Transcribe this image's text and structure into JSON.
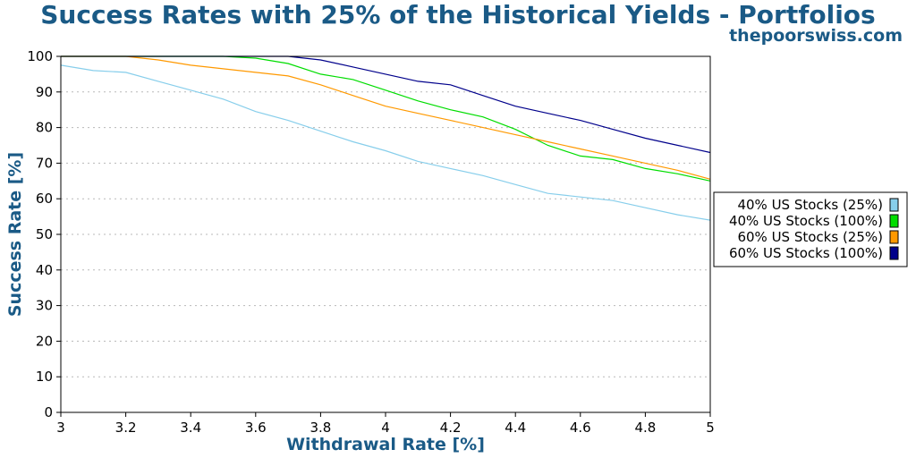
{
  "chart_data": {
    "type": "line",
    "title": "Success Rates with 25% of the Historical Yields - Portfolios",
    "subtitle": "thepoorswiss.com",
    "xlabel": "Withdrawal Rate [%]",
    "ylabel": "Success Rate [%]",
    "xlim": [
      3,
      5
    ],
    "ylim": [
      0,
      100
    ],
    "xticks": [
      "3",
      "3.2",
      "3.4",
      "3.6",
      "3.8",
      "4",
      "4.2",
      "4.4",
      "4.6",
      "4.8",
      "5"
    ],
    "yticks": [
      "0",
      "10",
      "20",
      "30",
      "40",
      "50",
      "60",
      "70",
      "80",
      "90",
      "100"
    ],
    "grid": "horizontal-dotted",
    "legend_position": "right",
    "x": [
      3.0,
      3.1,
      3.2,
      3.3,
      3.4,
      3.5,
      3.6,
      3.7,
      3.8,
      3.9,
      4.0,
      4.1,
      4.2,
      4.3,
      4.4,
      4.5,
      4.6,
      4.7,
      4.8,
      4.9,
      5.0
    ],
    "series": [
      {
        "name": "40% US Stocks (25%)",
        "color": "#87ceeb",
        "values": [
          97.5,
          96,
          95.5,
          93,
          90.5,
          88,
          84.5,
          82,
          79,
          76,
          73.5,
          70.5,
          68.5,
          66.5,
          64,
          61.5,
          60.5,
          59.5,
          57.5,
          55.5,
          54
        ]
      },
      {
        "name": "40% US Stocks (100%)",
        "color": "#00dd00",
        "values": [
          100,
          100,
          100,
          100,
          100,
          100,
          99.5,
          98,
          95,
          93.5,
          90.5,
          87.5,
          85,
          83,
          79.5,
          75,
          72,
          71,
          68.5,
          67,
          65
        ]
      },
      {
        "name": "60% US Stocks (25%)",
        "color": "#ff9900",
        "values": [
          100,
          100,
          100,
          99,
          97.5,
          96.5,
          95.5,
          94.5,
          92,
          89,
          86,
          84,
          82,
          80,
          78,
          76,
          74,
          72,
          70,
          68,
          65.5
        ]
      },
      {
        "name": "60% US Stocks (100%)",
        "color": "#00008b",
        "values": [
          100,
          100,
          100,
          100,
          100,
          100,
          100,
          100,
          99,
          97,
          95,
          93,
          92,
          89,
          86,
          84,
          82,
          79.5,
          77,
          75,
          73
        ]
      }
    ]
  }
}
